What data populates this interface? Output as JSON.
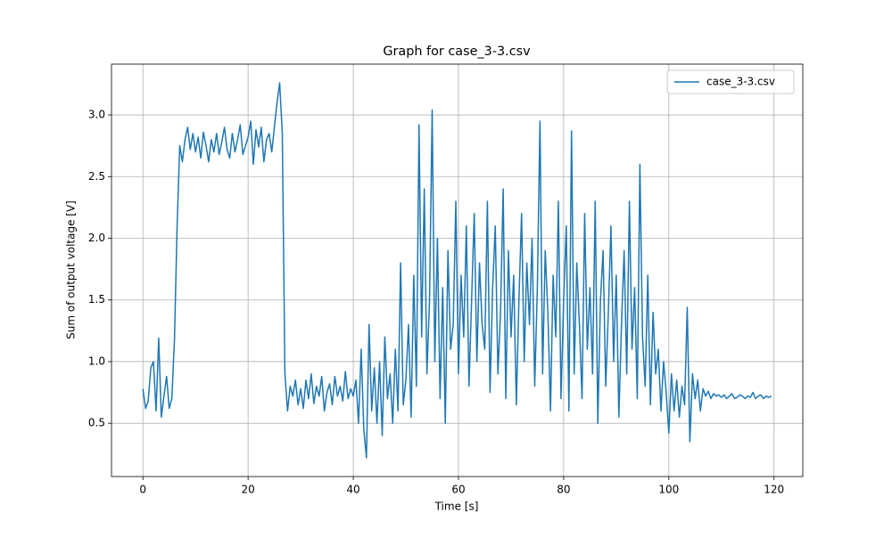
{
  "chart_data": {
    "type": "line",
    "title": "Graph for case_3-3.csv",
    "x_label": "Time [s]",
    "y_label": "Sum of output voltage [V]",
    "x": [
      0,
      0.5,
      1,
      1.5,
      2,
      2.5,
      3,
      3.5,
      4,
      4.5,
      5,
      5.5,
      6,
      6.5,
      7,
      7.5,
      8,
      8.5,
      9,
      9.5,
      10,
      10.5,
      11,
      11.5,
      12,
      12.5,
      13,
      13.5,
      14,
      14.5,
      15,
      15.5,
      16,
      16.5,
      17,
      17.5,
      18,
      18.5,
      19,
      19.5,
      20,
      20.5,
      21,
      21.5,
      22,
      22.5,
      23,
      23.5,
      24,
      24.5,
      25,
      25.5,
      26,
      26.5,
      27,
      27.5,
      28,
      28.5,
      29,
      29.5,
      30,
      30.5,
      31,
      31.5,
      32,
      32.5,
      33,
      33.5,
      34,
      34.5,
      35,
      35.5,
      36,
      36.5,
      37,
      37.5,
      38,
      38.5,
      39,
      39.5,
      40,
      40.5,
      41,
      41.5,
      42,
      42.5,
      43,
      43.5,
      44,
      44.5,
      45,
      45.5,
      46,
      46.5,
      47,
      47.5,
      48,
      48.5,
      49,
      49.5,
      50,
      50.5,
      51,
      51.5,
      52,
      52.5,
      53,
      53.5,
      54,
      54.5,
      55,
      55.5,
      56,
      56.5,
      57,
      57.5,
      58,
      58.5,
      59,
      59.5,
      60,
      60.5,
      61,
      61.5,
      62,
      62.5,
      63,
      63.5,
      64,
      64.5,
      65,
      65.5,
      66,
      66.5,
      67,
      67.5,
      68,
      68.5,
      69,
      69.5,
      70,
      70.5,
      71,
      71.5,
      72,
      72.5,
      73,
      73.5,
      74,
      74.5,
      75,
      75.5,
      76,
      76.5,
      77,
      77.5,
      78,
      78.5,
      79,
      79.5,
      80,
      80.5,
      81,
      81.5,
      82,
      82.5,
      83,
      83.5,
      84,
      84.5,
      85,
      85.5,
      86,
      86.5,
      87,
      87.5,
      88,
      88.5,
      89,
      89.5,
      90,
      90.5,
      91,
      91.5,
      92,
      92.5,
      93,
      93.5,
      94,
      94.5,
      95,
      95.5,
      96,
      96.5,
      97,
      97.5,
      98,
      98.5,
      99,
      99.5,
      100,
      100.5,
      101,
      101.5,
      102,
      102.5,
      103,
      103.5,
      104,
      104.5,
      105,
      105.5,
      106,
      106.5,
      107,
      107.5,
      108,
      108.5,
      109,
      109.5,
      110,
      110.5,
      111,
      111.5,
      112,
      112.5,
      113,
      113.5,
      114,
      114.5,
      115,
      115.5,
      116,
      116.5,
      117,
      117.5,
      118,
      118.5,
      119,
      119.5
    ],
    "series": [
      {
        "name": "case_3-3.csv",
        "color": "#1f77b4",
        "values": [
          0.78,
          0.62,
          0.68,
          0.95,
          1.0,
          0.6,
          1.19,
          0.55,
          0.72,
          0.88,
          0.62,
          0.7,
          1.18,
          2.1,
          2.75,
          2.62,
          2.8,
          2.9,
          2.72,
          2.85,
          2.7,
          2.82,
          2.65,
          2.86,
          2.75,
          2.62,
          2.8,
          2.7,
          2.85,
          2.68,
          2.78,
          2.9,
          2.72,
          2.65,
          2.85,
          2.7,
          2.8,
          2.92,
          2.68,
          2.75,
          2.82,
          2.95,
          2.6,
          2.88,
          2.74,
          2.9,
          2.62,
          2.8,
          2.85,
          2.7,
          2.9,
          3.1,
          3.26,
          2.85,
          0.9,
          0.6,
          0.8,
          0.72,
          0.85,
          0.65,
          0.78,
          0.62,
          0.85,
          0.7,
          0.9,
          0.66,
          0.8,
          0.72,
          0.88,
          0.6,
          0.75,
          0.82,
          0.65,
          0.88,
          0.72,
          0.8,
          0.68,
          0.92,
          0.7,
          0.78,
          0.72,
          0.85,
          0.5,
          1.1,
          0.45,
          0.22,
          1.3,
          0.6,
          0.95,
          0.5,
          1.0,
          0.4,
          1.2,
          0.7,
          0.9,
          0.5,
          1.1,
          0.6,
          1.8,
          0.65,
          0.85,
          1.3,
          0.55,
          1.7,
          0.8,
          2.92,
          1.2,
          2.4,
          0.9,
          1.5,
          3.04,
          1.0,
          2.0,
          0.7,
          1.6,
          0.5,
          1.9,
          1.1,
          1.3,
          2.3,
          0.9,
          1.7,
          1.2,
          2.1,
          0.8,
          1.5,
          2.2,
          1.0,
          1.8,
          1.3,
          1.1,
          2.3,
          0.75,
          1.6,
          2.1,
          0.9,
          1.4,
          2.4,
          0.7,
          1.9,
          1.2,
          1.7,
          0.65,
          1.5,
          2.2,
          1.0,
          1.8,
          1.3,
          2.0,
          0.8,
          1.6,
          2.95,
          0.9,
          1.9,
          1.4,
          0.6,
          1.7,
          1.2,
          2.3,
          0.7,
          1.5,
          2.1,
          0.6,
          2.87,
          0.9,
          1.8,
          1.3,
          0.7,
          2.2,
          1.1,
          1.6,
          0.9,
          2.3,
          0.5,
          1.5,
          1.9,
          0.8,
          1.4,
          2.1,
          1.0,
          1.7,
          0.55,
          1.3,
          1.9,
          0.9,
          2.3,
          1.1,
          1.6,
          0.7,
          2.6,
          1.2,
          0.8,
          1.7,
          0.65,
          1.4,
          0.9,
          1.1,
          0.6,
          1.0,
          0.75,
          0.42,
          0.9,
          0.6,
          0.85,
          0.55,
          0.8,
          0.65,
          1.44,
          0.35,
          0.9,
          0.7,
          0.85,
          0.6,
          0.78,
          0.72,
          0.76,
          0.7,
          0.74,
          0.72,
          0.73,
          0.71,
          0.73,
          0.7,
          0.72,
          0.74,
          0.7,
          0.71,
          0.73,
          0.72,
          0.7,
          0.72,
          0.71,
          0.75,
          0.7,
          0.72,
          0.73,
          0.7,
          0.72,
          0.71,
          0.72
        ]
      }
    ],
    "xlim": [
      -5.975,
      125.475
    ],
    "ylim": [
      0.068,
      3.412
    ],
    "xticks": [
      0,
      20,
      40,
      60,
      80,
      100,
      120
    ],
    "yticks": [
      0.5,
      {
        "value": 1.0,
        "label": "1.0"
      },
      1.5,
      {
        "value": 2.0,
        "label": "2.0"
      },
      2.5,
      {
        "value": 3.0,
        "label": "3.0"
      }
    ],
    "grid": true,
    "legend": "upper right"
  }
}
